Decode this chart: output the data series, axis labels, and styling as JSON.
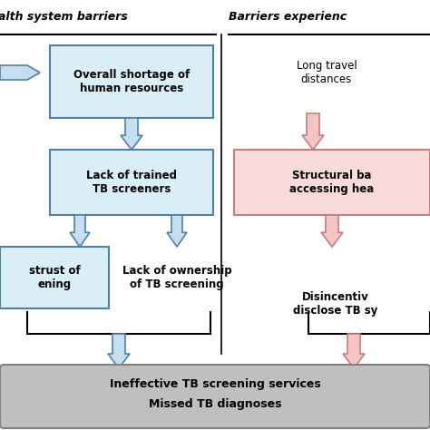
{
  "title_left": "alth system barriers",
  "title_right": "Barriers experienc",
  "box1_text": "Overall shortage of\nhuman resources",
  "box2_text": "Lack of trained\nTB screeners",
  "box3_text": "strust of\nening",
  "box4_text": "Lack of ownership\nof TB screening",
  "box5_text": "Long travel\ndistances",
  "box6_text": "Structural ba\naccessing hea",
  "box7_text": "Disincentiv\ndisclose TB sy",
  "box_bottom_line1": "Ineffective TB screening services",
  "box_bottom_line2": "Missed TB diagnoses",
  "color_blue_fill": "#daeef8",
  "color_blue_border": "#4f81a0",
  "color_pink_fill": "#f8dada",
  "color_pink_border": "#c08080",
  "color_gray_fill": "#bfbfbf",
  "color_gray_border": "#808080",
  "color_arrow_blue_fill": "#c5dff0",
  "color_arrow_blue_edge": "#4f81a0",
  "color_arrow_pink_fill": "#f5c5c5",
  "color_arrow_pink_edge": "#c08080",
  "background": "#ffffff"
}
